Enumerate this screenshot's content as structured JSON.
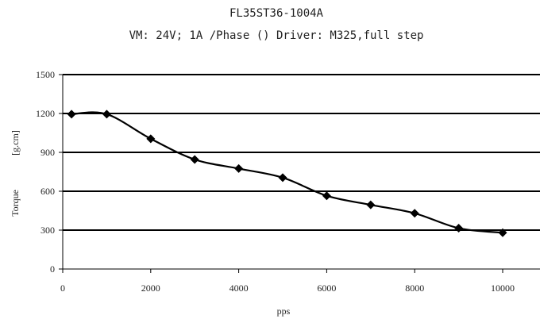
{
  "chart_data": {
    "type": "line",
    "title": "FL35ST36-1004A",
    "subtitle": "VM: 24V;  1A /Phase ()  Driver: M325,full step",
    "xlabel": "pps",
    "ylabel": "Torque",
    "ylabel_unit": "[g.cm]",
    "xlim": [
      0,
      10000
    ],
    "ylim": [
      0,
      1500
    ],
    "x_ticks": [
      0,
      2000,
      4000,
      6000,
      8000,
      10000
    ],
    "y_ticks": [
      0,
      300,
      600,
      900,
      1200,
      1500
    ],
    "grid": "horizontal",
    "series": [
      {
        "x": [
          200,
          1000,
          2000,
          3000,
          4000,
          5000,
          6000,
          7000,
          8000,
          9000,
          10000
        ],
        "y": [
          1195,
          1195,
          1005,
          845,
          775,
          705,
          565,
          495,
          430,
          315,
          280
        ],
        "marker": "diamond",
        "color": "#000000"
      }
    ]
  }
}
